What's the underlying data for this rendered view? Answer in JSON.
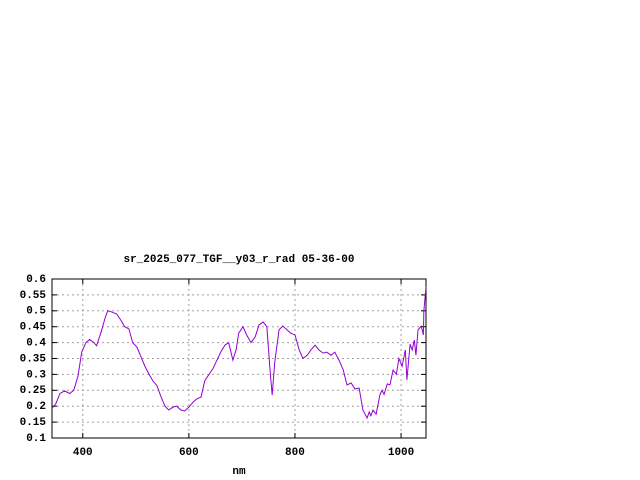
{
  "chart_data": {
    "type": "line",
    "title": "sr_2025_077_TGF__y03_r_rad 05-36-00",
    "x_label": "nm",
    "color": "#9400d3",
    "grid": true,
    "x": [
      342,
      349,
      357,
      366,
      375,
      383,
      391,
      398,
      406,
      413,
      421,
      426,
      434,
      442,
      447,
      455,
      464,
      472,
      479,
      487,
      494,
      502,
      509,
      517,
      525,
      532,
      540,
      547,
      555,
      562,
      570,
      577,
      585,
      592,
      600,
      608,
      615,
      623,
      630,
      638,
      645,
      653,
      660,
      668,
      675,
      683,
      689,
      694,
      702,
      709,
      717,
      725,
      732,
      740,
      747,
      753,
      757,
      762,
      770,
      777,
      785,
      792,
      800,
      808,
      815,
      823,
      830,
      838,
      845,
      853,
      860,
      868,
      875,
      883,
      891,
      898,
      906,
      913,
      921,
      928,
      936,
      940,
      943,
      947,
      953,
      960,
      964,
      968,
      974,
      979,
      985,
      991,
      996,
      1002,
      1008,
      1011,
      1017,
      1021,
      1025,
      1028,
      1032,
      1038,
      1042,
      1043,
      1047
    ],
    "values": [
      0.194,
      0.207,
      0.24,
      0.248,
      0.24,
      0.25,
      0.295,
      0.37,
      0.4,
      0.41,
      0.4,
      0.39,
      0.43,
      0.477,
      0.5,
      0.496,
      0.49,
      0.47,
      0.45,
      0.443,
      0.4,
      0.386,
      0.358,
      0.326,
      0.3,
      0.28,
      0.264,
      0.232,
      0.2,
      0.188,
      0.197,
      0.2,
      0.188,
      0.185,
      0.197,
      0.213,
      0.223,
      0.229,
      0.28,
      0.3,
      0.317,
      0.345,
      0.37,
      0.392,
      0.4,
      0.345,
      0.377,
      0.43,
      0.45,
      0.424,
      0.4,
      0.418,
      0.455,
      0.465,
      0.45,
      0.314,
      0.235,
      0.34,
      0.44,
      0.452,
      0.44,
      0.43,
      0.424,
      0.377,
      0.35,
      0.36,
      0.377,
      0.392,
      0.377,
      0.367,
      0.37,
      0.36,
      0.37,
      0.345,
      0.314,
      0.267,
      0.273,
      0.254,
      0.257,
      0.188,
      0.163,
      0.182,
      0.17,
      0.188,
      0.175,
      0.235,
      0.25,
      0.237,
      0.27,
      0.267,
      0.314,
      0.3,
      0.35,
      0.326,
      0.377,
      0.283,
      0.395,
      0.377,
      0.408,
      0.36,
      0.44,
      0.452,
      0.424,
      0.5,
      0.575
    ],
    "xlim": [
      342,
      1047
    ],
    "xticks": [
      400,
      600,
      800,
      1000
    ],
    "ylim": [
      0.1,
      0.6
    ],
    "yticks": [
      0.1,
      0.15,
      0.2,
      0.25,
      0.3,
      0.35,
      0.4,
      0.45,
      0.5,
      0.55,
      0.6
    ]
  }
}
